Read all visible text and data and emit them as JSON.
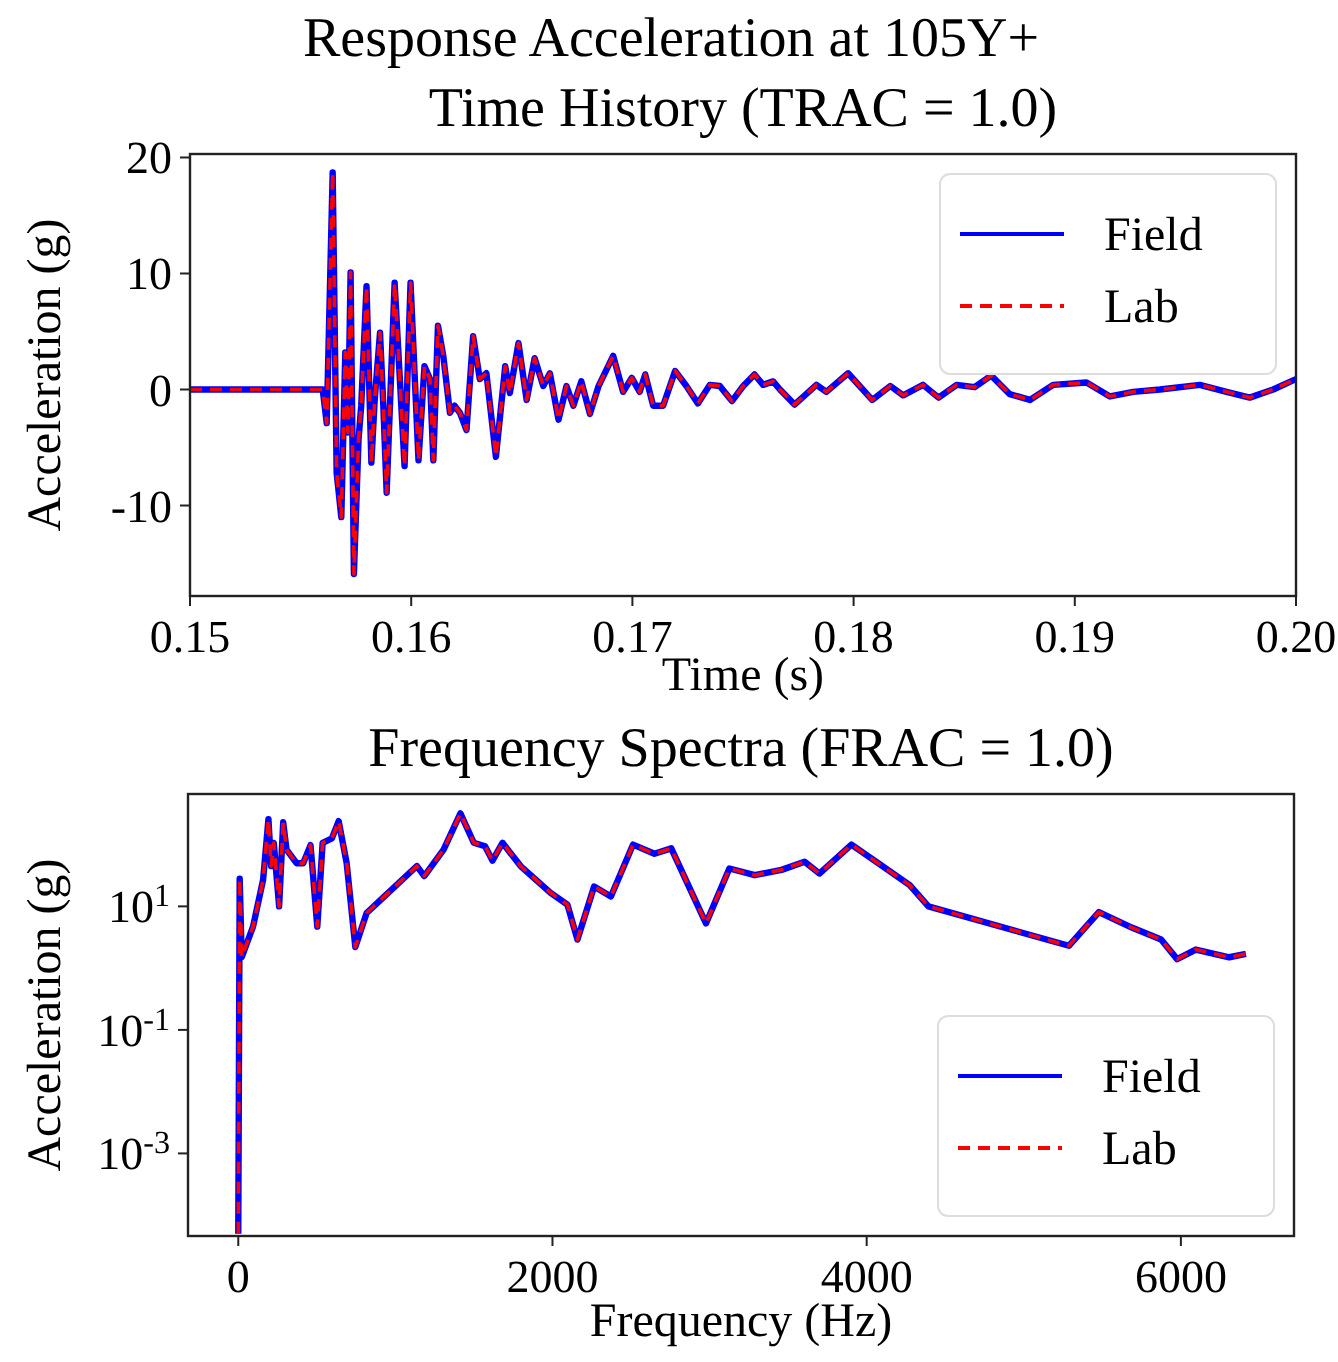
{
  "chart_data": [
    {
      "type": "line",
      "title": "Response Acceleration at 105Y+\nTime History (TRAC = 1.0)",
      "xlabel": "Time (s)",
      "ylabel": "Acceleration (g)",
      "x": [
        0.15,
        0.156,
        0.15618,
        0.15645,
        0.15663,
        0.15684,
        0.15702,
        0.15714,
        0.15726,
        0.15741,
        0.15762,
        0.15774,
        0.15798,
        0.1582,
        0.15835,
        0.15859,
        0.15874,
        0.15889,
        0.15925,
        0.1597,
        0.15997,
        0.16033,
        0.1606,
        0.16085,
        0.161,
        0.16121,
        0.16145,
        0.16175,
        0.16196,
        0.1622,
        0.1625,
        0.1628,
        0.1631,
        0.1634,
        0.16383,
        0.16425,
        0.16446,
        0.16485,
        0.16522,
        0.16558,
        0.16597,
        0.16627,
        0.16666,
        0.16702,
        0.16733,
        0.16769,
        0.16808,
        0.16847,
        0.16913,
        0.16958,
        0.16997,
        0.17033,
        0.17058,
        0.17094,
        0.17139,
        0.17193,
        0.17244,
        0.17296,
        0.1735,
        0.17395,
        0.1745,
        0.17501,
        0.17552,
        0.17591,
        0.17636,
        0.17667,
        0.17733,
        0.17832,
        0.17877,
        0.17975,
        0.18084,
        0.18166,
        0.18224,
        0.18314,
        0.18384,
        0.18466,
        0.18547,
        0.18622,
        0.18706,
        0.18797,
        0.18902,
        0.19053,
        0.19159,
        0.19264,
        0.19385,
        0.19565,
        0.19686,
        0.19791,
        0.19897,
        0.2
      ],
      "series": [
        {
          "name": "Field",
          "color": "#0000ff",
          "line_style": "solid",
          "values": [
            0,
            0,
            -2.9,
            18.7,
            -7.2,
            -11,
            3.2,
            -3.7,
            10.1,
            -15.9,
            -4.3,
            -1.4,
            8.9,
            -6.3,
            -0.9,
            4.9,
            -1.4,
            -8.9,
            9.2,
            -6.6,
            9.2,
            -6.1,
            2.0,
            0.9,
            -6.1,
            5.5,
            2.9,
            -2.0,
            -1.4,
            -2.0,
            -3.5,
            4.6,
            0.9,
            1.4,
            -5.8,
            2.0,
            -0.3,
            4.0,
            -0.9,
            2.7,
            0.3,
            1.4,
            -2.6,
            0.3,
            -1.4,
            0.7,
            -2.1,
            0.3,
            2.9,
            -0.2,
            1.0,
            -0.2,
            1.3,
            -1.4,
            -1.4,
            1.6,
            0.3,
            -1.2,
            0.4,
            0.3,
            -1.0,
            0.3,
            1.3,
            0.4,
            0.7,
            0,
            -1.3,
            0.4,
            -0.2,
            1.4,
            -0.9,
            0.3,
            -0.5,
            0.4,
            -0.7,
            0.4,
            0.2,
            1.2,
            -0.4,
            -0.9,
            0.4,
            0.6,
            -0.6,
            -0.2,
            0,
            0.4,
            -0.2,
            -0.7,
            0,
            0.9
          ]
        },
        {
          "name": "Lab",
          "color": "#ff0000",
          "line_style": "dashed",
          "values": [
            0,
            0,
            -2.9,
            18.7,
            -7.2,
            -11,
            3.2,
            -3.7,
            10.1,
            -15.9,
            -4.3,
            -1.4,
            8.9,
            -6.3,
            -0.9,
            4.9,
            -1.4,
            -8.9,
            9.2,
            -6.6,
            9.2,
            -6.1,
            2.0,
            0.9,
            -6.1,
            5.5,
            2.9,
            -2.0,
            -1.4,
            -2.0,
            -3.5,
            4.6,
            0.9,
            1.4,
            -5.8,
            2.0,
            -0.3,
            4.0,
            -0.9,
            2.7,
            0.3,
            1.4,
            -2.6,
            0.3,
            -1.4,
            0.7,
            -2.1,
            0.3,
            2.9,
            -0.2,
            1.0,
            -0.2,
            1.3,
            -1.4,
            -1.4,
            1.6,
            0.3,
            -1.2,
            0.4,
            0.3,
            -1.0,
            0.3,
            1.3,
            0.4,
            0.7,
            0,
            -1.3,
            0.4,
            -0.2,
            1.4,
            -0.9,
            0.3,
            -0.5,
            0.4,
            -0.7,
            0.4,
            0.2,
            1.2,
            -0.4,
            -0.9,
            0.4,
            0.6,
            -0.6,
            -0.2,
            0,
            0.4,
            -0.2,
            -0.7,
            0,
            0.9
          ]
        }
      ],
      "xlim": [
        0.15,
        0.2
      ],
      "xticks": [
        {
          "value": 0.15,
          "label": "0.15"
        },
        {
          "value": 0.16,
          "label": "0.16"
        },
        {
          "value": 0.17,
          "label": "0.17"
        },
        {
          "value": 0.18,
          "label": "0.18"
        },
        {
          "value": 0.19,
          "label": "0.19"
        },
        {
          "value": 0.2,
          "label": "0.20"
        }
      ],
      "ylim": [
        -17.8,
        20.3
      ],
      "yticks": [
        -10,
        0,
        10,
        20
      ],
      "legend": "top right"
    },
    {
      "type": "line",
      "title": "Frequency Spectra (FRAC = 1.0)",
      "xlabel": "Frequency (Hz)",
      "ylabel": "Acceleration (g)",
      "x": [
        0,
        9,
        22,
        94,
        158,
        192,
        209,
        226,
        260,
        286,
        307,
        371,
        413,
        460,
        503,
        537,
        596,
        639,
        690,
        745,
        817,
        903,
        1137,
        1184,
        1307,
        1414,
        1499,
        1571,
        1618,
        1682,
        1797,
        1988,
        2095,
        2159,
        2265,
        2372,
        2513,
        2649,
        2756,
        2977,
        3126,
        3288,
        3458,
        3605,
        3699,
        3903,
        4073,
        4274,
        4393,
        5287,
        5478,
        5691,
        5874,
        5976,
        6095,
        6308,
        6414
      ],
      "series": [
        {
          "name": "Field",
          "color": "#0000ff",
          "line_style": "solid",
          "values": [
            5e-05,
            28,
            1.5,
            4.7,
            27,
            257,
            45,
            106,
            10,
            230,
            83,
            50,
            50,
            98,
            4.7,
            107,
            126,
            240,
            50,
            2.2,
            7.8,
            12.5,
            45,
            31,
            83,
            320,
            107,
            94,
            55,
            107,
            45,
            16.6,
            10.7,
            2.9,
            21,
            14.5,
            100,
            71,
            87,
            5.3,
            41,
            32,
            39,
            53,
            34,
            100,
            50,
            22,
            10,
            2.3,
            8.1,
            4.5,
            2.9,
            1.4,
            2.0,
            1.5,
            1.7
          ]
        },
        {
          "name": "Lab",
          "color": "#ff0000",
          "line_style": "dashed",
          "values": [
            5e-05,
            28,
            1.5,
            4.7,
            27,
            257,
            45,
            106,
            10,
            230,
            83,
            50,
            50,
            98,
            4.7,
            107,
            126,
            240,
            50,
            2.2,
            7.8,
            12.5,
            45,
            31,
            83,
            320,
            107,
            94,
            55,
            107,
            45,
            16.6,
            10.7,
            2.9,
            21,
            14.5,
            100,
            71,
            87,
            5.3,
            41,
            32,
            39,
            53,
            34,
            100,
            50,
            22,
            10,
            2.3,
            8.1,
            4.5,
            2.9,
            1.4,
            2.0,
            1.5,
            1.7
          ]
        }
      ],
      "xlim": [
        -320,
        6720
      ],
      "xticks": [
        0,
        2000,
        4000,
        6000
      ],
      "ylim": [
        4.6e-05,
        660
      ],
      "yticks": [
        {
          "value": 0.001,
          "label": "10$^{-3}$"
        },
        {
          "value": 0.1,
          "label": "10$^{-1}$"
        },
        {
          "value": 10,
          "label": "10$^{1}$"
        }
      ],
      "log": "y",
      "legend": "bottom right"
    }
  ]
}
